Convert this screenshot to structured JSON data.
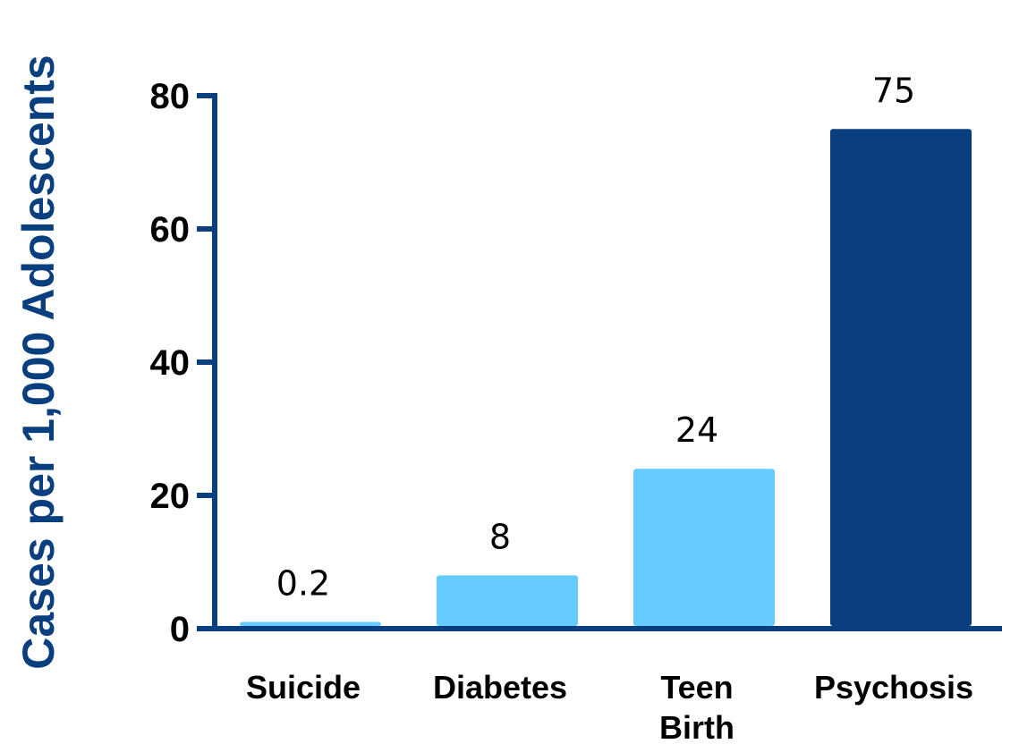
{
  "chart_data": {
    "type": "bar",
    "categories": [
      "Suicide",
      "Diabetes",
      "Teen Birth",
      "Psychosis"
    ],
    "category_lines": [
      [
        "Suicide"
      ],
      [
        "Diabetes"
      ],
      [
        "Teen",
        "Birth"
      ],
      [
        "Psychosis"
      ]
    ],
    "values": [
      0.2,
      8,
      24,
      75
    ],
    "data_labels": [
      "0.2",
      "8",
      "24",
      "75"
    ],
    "bar_colors": [
      "#66ccff",
      "#66ccff",
      "#66ccff",
      "#0a3f7f"
    ],
    "title": "",
    "xlabel": "",
    "ylabel": "Cases per 1,000 Adolescents",
    "ylim": [
      0,
      80
    ],
    "yticks": [
      0,
      20,
      40,
      60,
      80
    ],
    "ytick_labels": [
      "0",
      "20",
      "40",
      "60",
      "80"
    ],
    "grid": false,
    "axis_color": "#0a3f7f",
    "ylabel_color": "#0a3f7f"
  }
}
